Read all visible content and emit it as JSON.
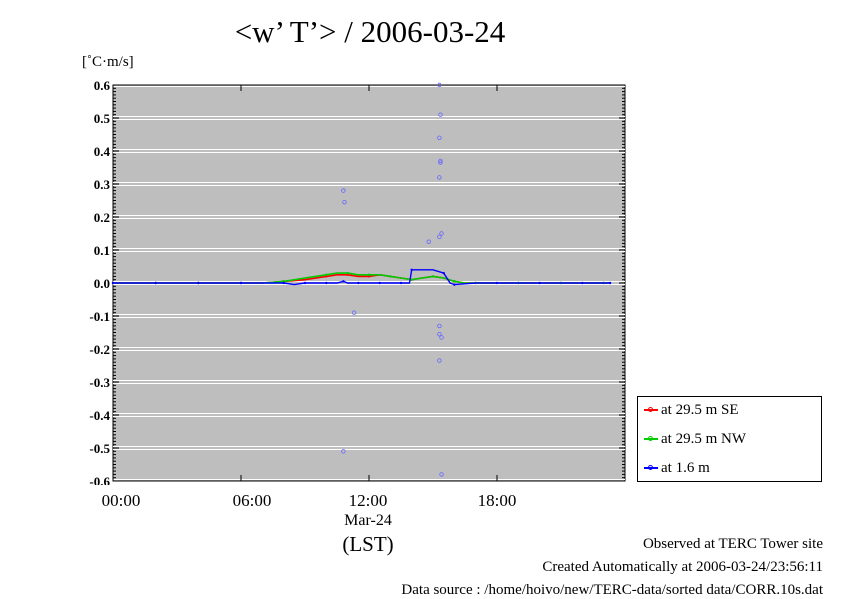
{
  "title": "<w’ T’> / 2006-03-24",
  "unit_label": "[˚C·m/s]",
  "x_ticks": [
    "00:00",
    "06:00",
    "12:00",
    "18:00"
  ],
  "x_date_label": "Mar-24",
  "x_axis_label": "(LST)",
  "y_tick_labels": [
    "0.6",
    "0.5",
    "0.4",
    "0.3",
    "0.2",
    "0.1",
    "0.0",
    "-0.1",
    "-0.2",
    "-0.3",
    "-0.4",
    "-0.5",
    "-0.6"
  ],
  "legend": [
    {
      "label": "at 29.5 m SE",
      "color": "#ff0000"
    },
    {
      "label": "at 29.5 m NW",
      "color": "#00cc00"
    },
    {
      "label": "at 1.6 m",
      "color": "#0000ff"
    }
  ],
  "footer": {
    "site": "Observed at TERC Tower site",
    "created": "Created Automatically at 2006-03-24/23:56:11",
    "source": "Data source : /home/hoivo/new/TERC-data/sorted  data/CORR.10s.dat"
  },
  "colors": {
    "plot_bg": "#bebebe",
    "grid": "#ffffff",
    "series_se": "#ff0000",
    "series_nw": "#00cc00",
    "series_1_6": "#0000ff"
  },
  "chart_data": {
    "type": "line",
    "title": "<w’ T’> / 2006-03-24",
    "xlabel": "(LST)",
    "ylabel": "[˚C·m/s]",
    "xlim": [
      0,
      24
    ],
    "ylim": [
      -0.6,
      0.6
    ],
    "x_ticks": [
      0,
      6,
      12,
      18
    ],
    "x_tick_labels": [
      "00:00",
      "06:00",
      "12:00",
      "18:00"
    ],
    "grid": true,
    "legend_position": "bottom-right-outside",
    "series": [
      {
        "name": "at 29.5 m SE",
        "color": "#ff0000",
        "x": [
          0,
          1,
          2,
          3,
          4,
          5,
          6,
          7,
          8,
          9,
          10,
          10.5,
          11,
          11.5,
          12,
          12.5,
          13,
          13.5,
          14,
          14.5,
          15,
          15.5,
          16,
          16.5,
          17,
          18,
          19,
          20,
          21,
          22,
          23,
          23.3
        ],
        "y": [
          0.0,
          0.0,
          0.0,
          0.0,
          0.0,
          0.0,
          0.0,
          0.0,
          0.005,
          0.01,
          0.02,
          0.025,
          0.025,
          0.02,
          0.02,
          0.025,
          0.02,
          0.015,
          0.01,
          0.015,
          0.02,
          0.015,
          0.005,
          0.0,
          0.0,
          0.0,
          0.0,
          0.0,
          0.0,
          0.0,
          0.0,
          0.0
        ]
      },
      {
        "name": "at 29.5 m NW",
        "color": "#00cc00",
        "x": [
          0,
          1,
          2,
          3,
          4,
          5,
          6,
          7,
          8,
          9,
          10,
          10.5,
          11,
          11.5,
          12,
          12.5,
          13,
          13.5,
          14,
          14.5,
          15,
          15.5,
          16,
          16.5,
          17,
          18,
          19,
          20,
          21,
          22,
          23,
          23.3
        ],
        "y": [
          0.0,
          0.0,
          0.0,
          0.0,
          0.0,
          0.0,
          0.0,
          0.0,
          0.005,
          0.015,
          0.025,
          0.03,
          0.03,
          0.025,
          0.025,
          0.025,
          0.02,
          0.015,
          0.01,
          0.015,
          0.02,
          0.015,
          0.005,
          0.0,
          0.0,
          0.0,
          0.0,
          0.0,
          0.0,
          0.0,
          0.0,
          0.0
        ]
      },
      {
        "name": "at 1.6 m",
        "color": "#0000ff",
        "x": [
          0,
          1,
          2,
          3,
          4,
          5,
          6,
          7,
          8,
          8.5,
          9,
          9.5,
          10,
          10.5,
          10.8,
          11,
          11.5,
          12,
          12.5,
          13,
          13.5,
          13.9,
          14,
          15,
          15.5,
          15.8,
          16,
          17,
          18,
          19,
          20,
          21,
          22,
          23,
          23.3
        ],
        "y": [
          0.0,
          0.0,
          0.0,
          0.0,
          0.0,
          0.0,
          0.0,
          0.0,
          0.0,
          -0.005,
          0.0,
          0.0,
          0.0,
          0.0,
          0.005,
          0.0,
          0.0,
          0.0,
          0.0,
          0.0,
          0.0,
          0.0,
          0.04,
          0.04,
          0.03,
          0.0,
          -0.005,
          0.0,
          0.0,
          0.0,
          0.0,
          0.0,
          0.0,
          0.0,
          0.0
        ]
      },
      {
        "name": "",
        "color": "#6666ff",
        "style": "scatter",
        "x": [
          15.3,
          15.35,
          15.3,
          15.35,
          15.35,
          15.3,
          15.4,
          15.3,
          15.3,
          15.3,
          15.4,
          15.3,
          10.8,
          10.85,
          14.8,
          11.3,
          10.8,
          15.4
        ],
        "y": [
          0.6,
          0.51,
          0.44,
          0.37,
          0.365,
          0.32,
          0.15,
          0.14,
          -0.13,
          -0.155,
          -0.165,
          -0.235,
          0.28,
          0.245,
          0.125,
          -0.09,
          -0.51,
          -0.58
        ]
      }
    ]
  }
}
